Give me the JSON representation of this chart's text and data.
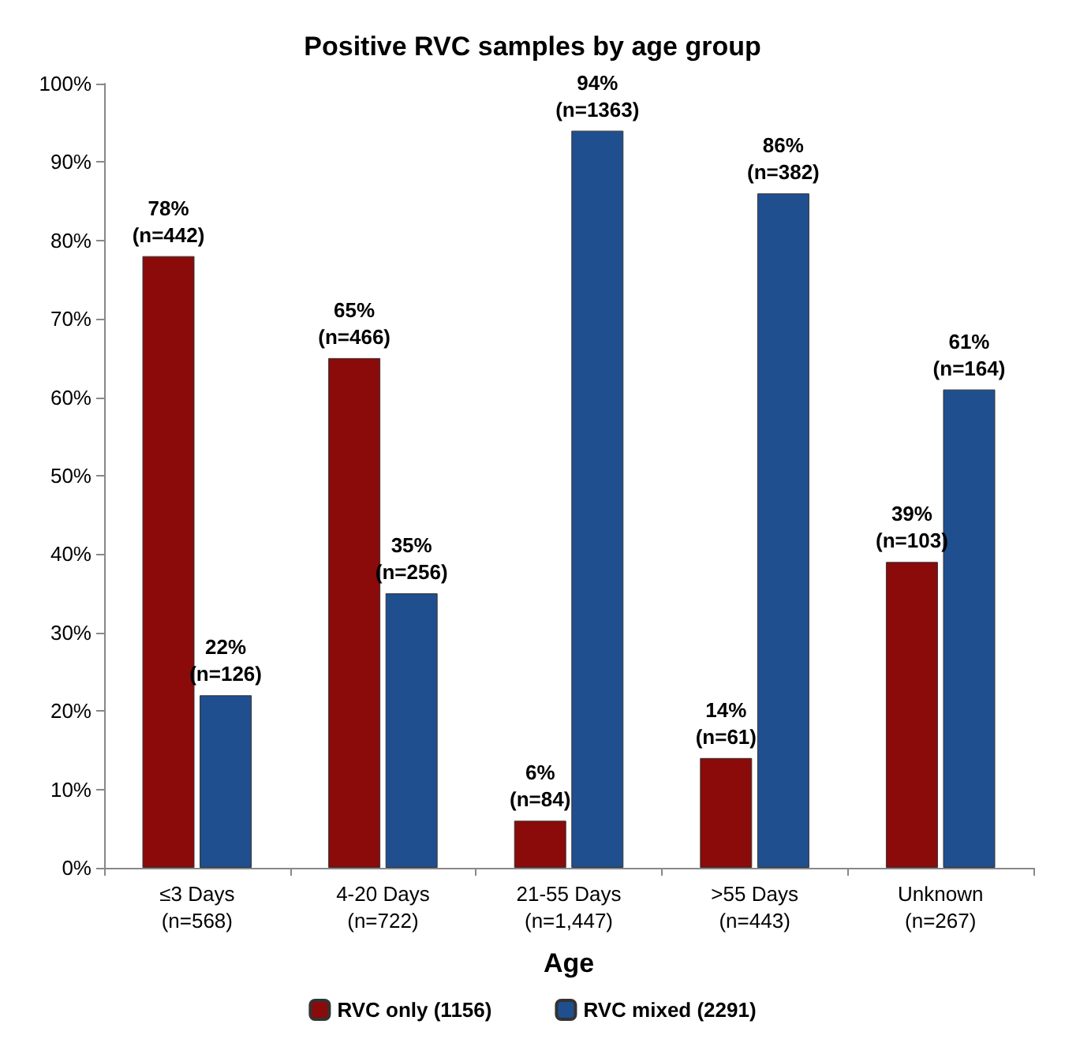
{
  "chart_data": {
    "type": "bar",
    "title": "Positive RVC samples by age group",
    "xlabel": "Age",
    "categories": [
      "≤3 Days\n(n=568)",
      "4-20 Days\n(n=722)",
      "21-55 Days\n(n=1,447)",
      ">55 Days\n(n=443)",
      "Unknown\n(n=267)"
    ],
    "series": [
      {
        "name": "RVC only (1156)",
        "color": "#8b0a0a",
        "values": [
          78,
          65,
          6,
          14,
          39
        ],
        "value_labels": [
          "78%\n(n=442)",
          "65%\n(n=466)",
          "6%\n(n=84)",
          "14%\n(n=61)",
          "39%\n(n=103)"
        ]
      },
      {
        "name": "RVC mixed (2291)",
        "color": "#1f4f8f",
        "values": [
          22,
          35,
          94,
          86,
          61
        ],
        "value_labels": [
          "22%\n(n=126)",
          "35%\n(n=256)",
          "94%\n(n=1363)",
          "86%\n(n=382)",
          "61%\n(n=164)"
        ]
      }
    ],
    "ylim": [
      0,
      100
    ],
    "yticks": [
      {
        "value": 0,
        "label": "0%"
      },
      {
        "value": 10,
        "label": "10%"
      },
      {
        "value": 20,
        "label": "20%"
      },
      {
        "value": 30,
        "label": "30%"
      },
      {
        "value": 40,
        "label": "40%"
      },
      {
        "value": 50,
        "label": "50%"
      },
      {
        "value": 60,
        "label": "60%"
      },
      {
        "value": 70,
        "label": "70%"
      },
      {
        "value": 80,
        "label": "80%"
      },
      {
        "value": 90,
        "label": "90%"
      },
      {
        "value": 100,
        "label": "100%"
      }
    ],
    "grid": false,
    "legend": "bottom"
  }
}
